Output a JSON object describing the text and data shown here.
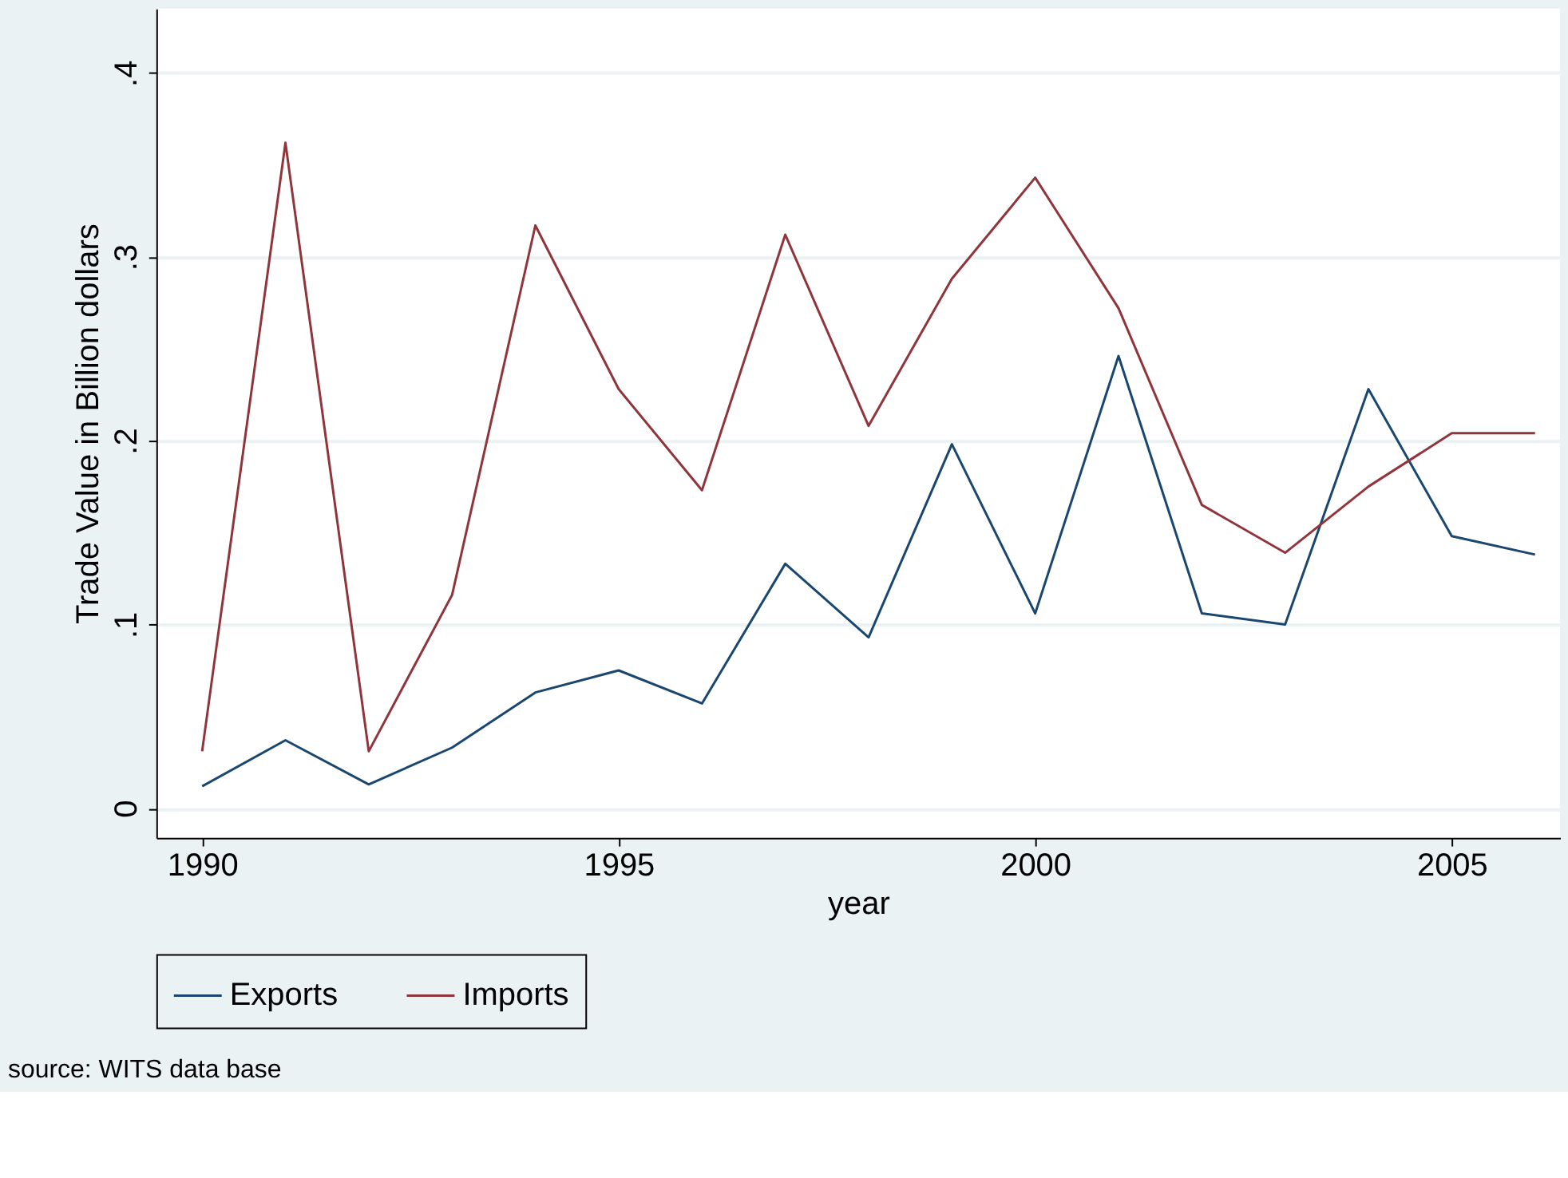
{
  "chart_data": {
    "type": "line",
    "xlabel": "year",
    "ylabel": "Trade Value in Billion dollars",
    "x": [
      1990,
      1991,
      1992,
      1993,
      1994,
      1995,
      1996,
      1997,
      1998,
      1999,
      2000,
      2001,
      2002,
      2003,
      2004,
      2005,
      2006
    ],
    "series": [
      {
        "name": "Exports",
        "color": "#1a476f",
        "values": [
          0.012,
          0.037,
          0.013,
          0.033,
          0.063,
          0.075,
          0.057,
          0.133,
          0.093,
          0.198,
          0.106,
          0.246,
          0.106,
          0.1,
          0.228,
          0.148,
          0.138
        ]
      },
      {
        "name": "Imports",
        "color": "#90353b",
        "values": [
          0.031,
          0.362,
          0.031,
          0.116,
          0.317,
          0.228,
          0.173,
          0.312,
          0.208,
          0.288,
          0.343,
          0.272,
          0.165,
          0.139,
          0.175,
          0.204,
          0.204
        ]
      }
    ],
    "xlim": [
      1989.45,
      2006.3
    ],
    "xticks": [
      1990,
      1995,
      2000,
      2005
    ],
    "ylim": [
      -0.016,
      0.435
    ],
    "yticks": [
      {
        "value": 0,
        "label": "0"
      },
      {
        "value": 0.1,
        "label": ".1"
      },
      {
        "value": 0.2,
        "label": ".2"
      },
      {
        "value": 0.3,
        "label": ".3"
      },
      {
        "value": 0.4,
        "label": ".4"
      }
    ],
    "grid": "y",
    "legend": "bottom",
    "marker": "none",
    "line_style": "solid",
    "annotations": [
      "source: WITS data base"
    ]
  }
}
